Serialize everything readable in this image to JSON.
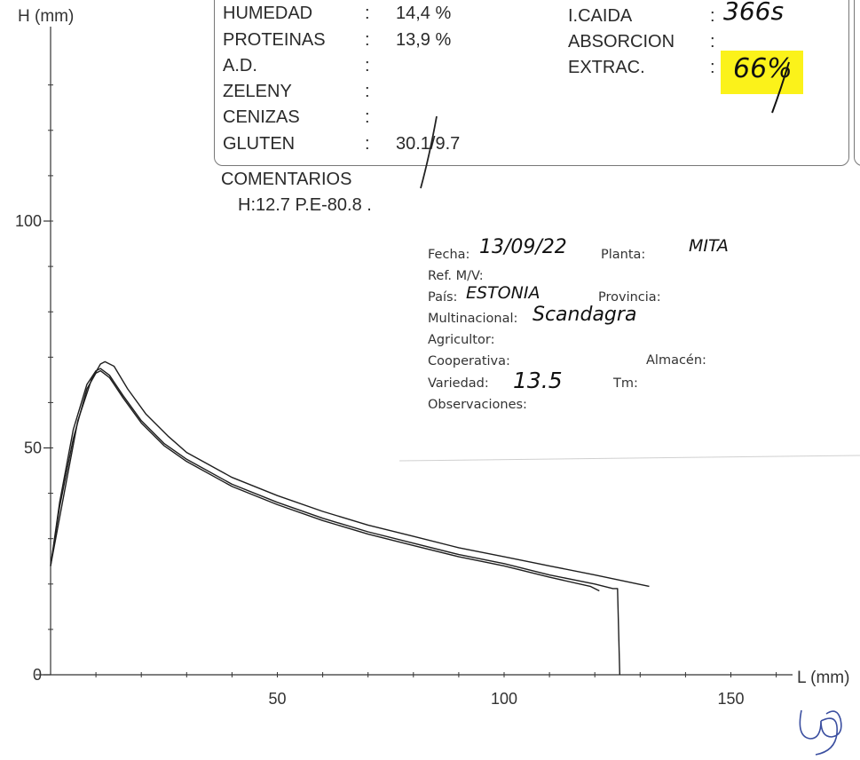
{
  "chart_data": {
    "type": "line",
    "xlabel": "L (mm)",
    "ylabel": "H (mm)",
    "xlim": [
      0,
      160
    ],
    "ylim": [
      0,
      130
    ],
    "x_ticks": [
      "50",
      "100",
      "150"
    ],
    "y_ticks": [
      "0",
      "50",
      "100"
    ],
    "grid": false,
    "legend": "none",
    "series": [
      {
        "x": [
          0,
          2,
          5,
          8,
          10,
          11,
          13,
          16,
          20,
          25,
          30,
          40,
          50,
          60,
          70,
          80,
          90,
          100,
          110,
          120,
          124,
          124,
          125,
          125.5
        ],
        "y": [
          24,
          38,
          54,
          64,
          67,
          67.5,
          66,
          61.5,
          56,
          51,
          47.5,
          42,
          38,
          34.5,
          31.5,
          29,
          26.5,
          24.5,
          22,
          20,
          19,
          19,
          19,
          0
        ]
      },
      {
        "x": [
          0,
          2,
          5,
          8,
          10,
          11,
          13,
          16,
          20,
          25,
          30,
          40,
          50,
          60,
          70,
          80,
          90,
          100,
          110,
          119,
          121
        ],
        "y": [
          24,
          37,
          52,
          63,
          66.5,
          67,
          65.5,
          61,
          55.5,
          50.5,
          47,
          41.5,
          37.5,
          34,
          31,
          28.5,
          26,
          24,
          21.5,
          19.5,
          18.5
        ]
      },
      {
        "x": [
          0,
          3,
          6,
          9,
          11,
          12,
          14,
          17,
          21,
          26,
          30,
          40,
          50,
          60,
          70,
          80,
          90,
          100,
          110,
          120,
          132
        ],
        "y": [
          24,
          40,
          56,
          65,
          68.5,
          69,
          68,
          63,
          57.5,
          52.5,
          49,
          43.5,
          39.5,
          36,
          33,
          30.5,
          28,
          26,
          24,
          22,
          19.5
        ]
      }
    ]
  },
  "lab_header": {
    "left": [
      {
        "label": "HUMEDAD",
        "colon": ":",
        "value": "14,4 %"
      },
      {
        "label": "PROTEINAS",
        "colon": ":",
        "value": "13,9 %"
      },
      {
        "label": "A.D.",
        "colon": ":",
        "value": ""
      },
      {
        "label": "ZELENY",
        "colon": ":",
        "value": ""
      },
      {
        "label": "CENIZAS",
        "colon": ":",
        "value": ""
      },
      {
        "label": "GLUTEN",
        "colon": ":",
        "value": "30.1/9.7"
      }
    ],
    "right": [
      {
        "label": "I.CAIDA",
        "colon": ":",
        "value": "366s"
      },
      {
        "label": "ABSORCION",
        "colon": ":",
        "value": ""
      },
      {
        "label": "EXTRAC.",
        "colon": ":",
        "value": "66%"
      }
    ],
    "comentarios_label": "COMENTARIOS",
    "comentarios_text": "H:12.7 P.E-80.8 ."
  },
  "form": {
    "fecha_label": "Fecha:",
    "fecha_value": "13/09/22",
    "planta_label": "Planta:",
    "planta_value": "MITA",
    "ref_label": "Ref. M/V:",
    "pais_label": "País:",
    "pais_value": "ESTONIA",
    "provincia_label": "Provincia:",
    "multinacional_label": "Multinacional:",
    "multinacional_value": "Scandagra",
    "agricultor_label": "Agricultor:",
    "cooperativa_label": "Cooperativa:",
    "almacen_label": "Almacén:",
    "variedad_label": "Variedad:",
    "variedad_value": "13.5",
    "tm_label": "Tm:",
    "observaciones_label": "Observaciones:"
  },
  "colors": {
    "highlight": "#fbf21a",
    "ink": "#222222",
    "frame": "#777777"
  }
}
